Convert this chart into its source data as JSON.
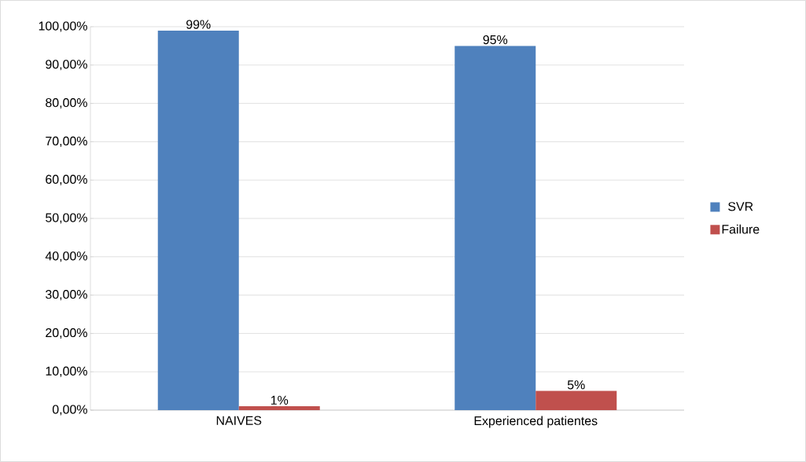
{
  "chart_data": {
    "type": "bar",
    "categories": [
      "NAIVES",
      "Experienced patientes"
    ],
    "series": [
      {
        "name": "SVR",
        "color": "#4f81bd",
        "values": [
          99,
          95
        ],
        "value_labels": [
          "99%",
          "95%"
        ]
      },
      {
        "name": "Failure",
        "color": "#c0504d",
        "values": [
          1,
          5
        ],
        "value_labels": [
          "1%",
          "5%"
        ]
      }
    ],
    "ylim": [
      0,
      100
    ],
    "yticks": [
      {
        "value": 0,
        "label": "0,00%"
      },
      {
        "value": 10,
        "label": "10,00%"
      },
      {
        "value": 20,
        "label": "20,00%"
      },
      {
        "value": 30,
        "label": "30,00%"
      },
      {
        "value": 40,
        "label": "40,00%"
      },
      {
        "value": 50,
        "label": "50,00%"
      },
      {
        "value": 60,
        "label": "60,00%"
      },
      {
        "value": 70,
        "label": "70,00%"
      },
      {
        "value": 80,
        "label": "80,00%"
      },
      {
        "value": 90,
        "label": "90,00%"
      },
      {
        "value": 100,
        "label": "100,00%"
      }
    ],
    "grid": "y",
    "legend": "right"
  }
}
